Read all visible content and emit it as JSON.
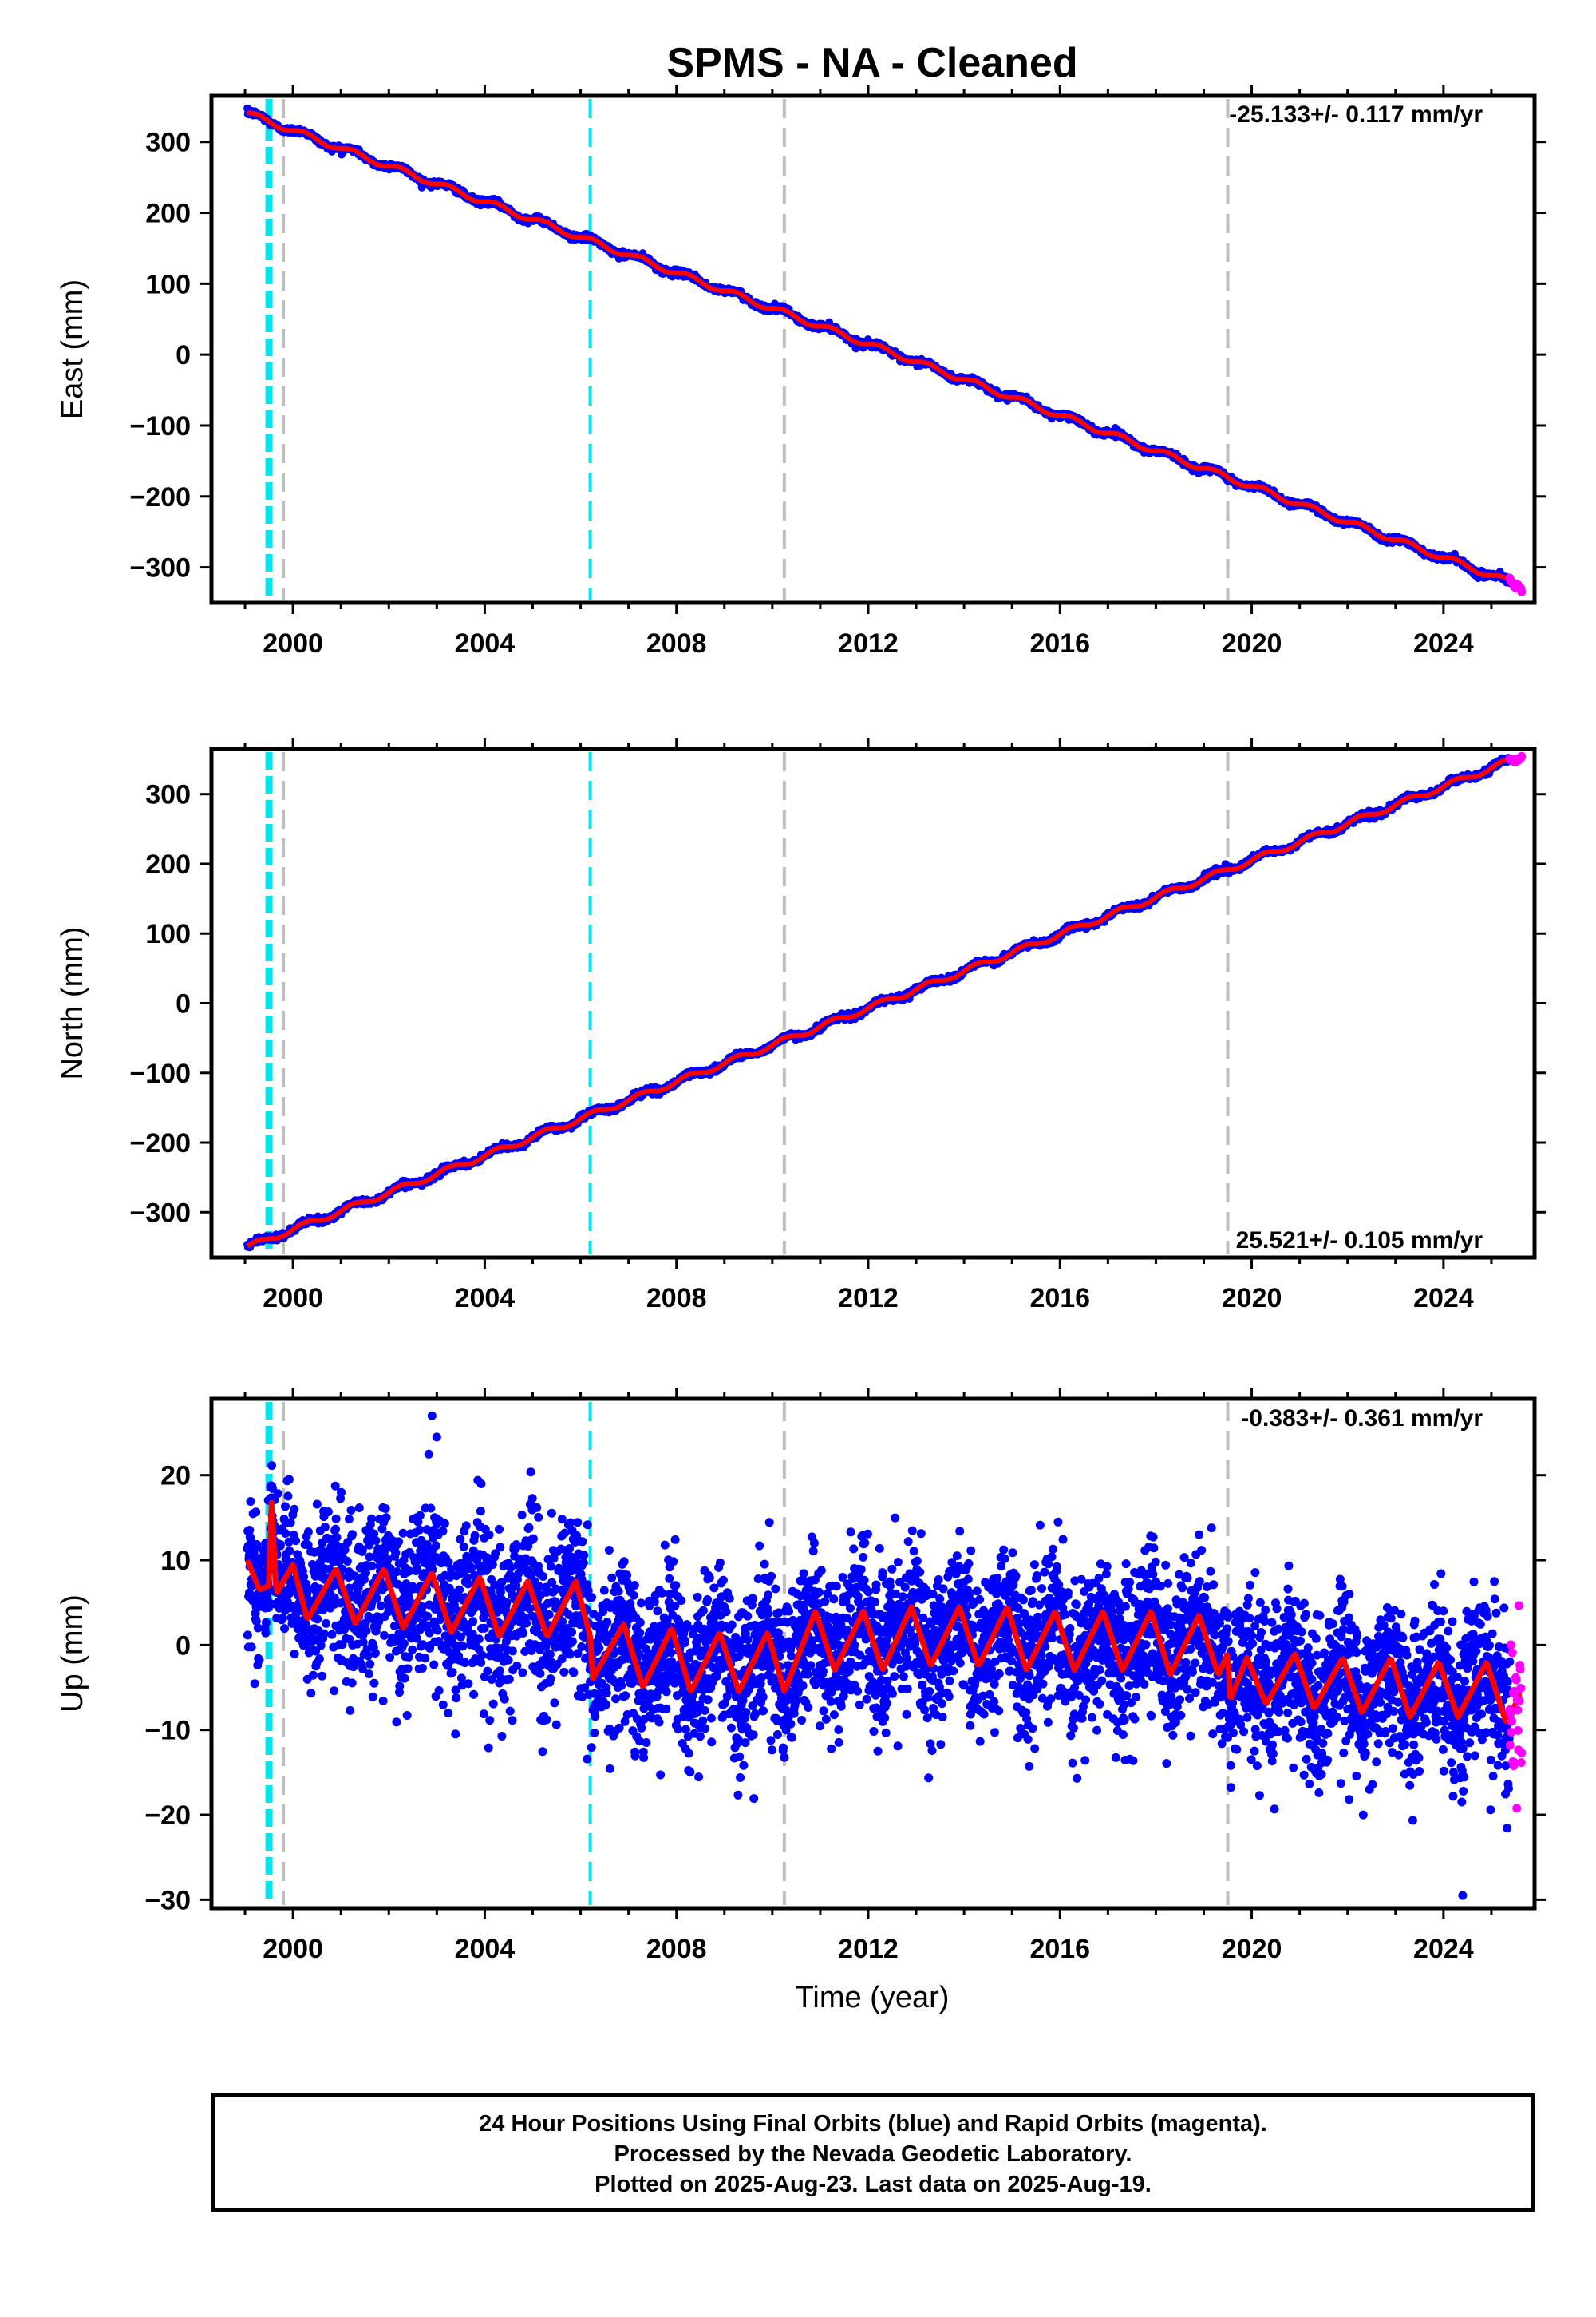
{
  "title": "SPMS  - NA - Cleaned",
  "xlabel": "Time (year)",
  "footer": {
    "line1": "24 Hour Positions Using Final Orbits (blue) and Rapid Orbits (magenta).",
    "line2": "Processed by the Nevada Geodetic Laboratory.",
    "line3": "Plotted on 2025-Aug-23. Last data on 2025-Aug-19."
  },
  "colors": {
    "final_orbits": "#0000ff",
    "rapid_orbits": "#ff00ff",
    "model_fit": "#ff0000",
    "cyan_event": "#00e5ee",
    "gray_event": "#bebebe"
  },
  "chart_data": [
    {
      "type": "scatter",
      "ylabel": "East (mm)",
      "rate_label": "-25.133+/- 0.117 mm/yr",
      "xlim": [
        1998.3,
        2025.9
      ],
      "ylim": [
        -350,
        365
      ],
      "x_ticks": [
        2000,
        2004,
        2008,
        2012,
        2016,
        2020,
        2024
      ],
      "y_ticks": [
        300,
        200,
        100,
        0,
        -100,
        -200,
        -300
      ],
      "y_tick_labels": [
        "300",
        "200",
        "100",
        "0",
        "−100",
        "−200",
        "−300"
      ],
      "start": [
        1999.05,
        340
      ],
      "end": [
        2025.55,
        -325
      ],
      "seasonal_amp": 4,
      "series": [
        {
          "role": "final",
          "x_range": [
            1999.05,
            2025.38
          ]
        },
        {
          "role": "rapid",
          "x_range": [
            2025.38,
            2025.63
          ]
        }
      ],
      "grid": false
    },
    {
      "type": "scatter",
      "ylabel": "North (mm)",
      "rate_label": "25.521+/- 0.105 mm/yr",
      "xlim": [
        1998.3,
        2025.9
      ],
      "ylim": [
        -365,
        365
      ],
      "x_ticks": [
        2000,
        2004,
        2008,
        2012,
        2016,
        2020,
        2024
      ],
      "y_ticks": [
        300,
        200,
        100,
        0,
        -100,
        -200,
        -300
      ],
      "y_tick_labels": [
        "300",
        "200",
        "100",
        "0",
        "−100",
        "−200",
        "−300"
      ],
      "start": [
        1999.05,
        -350
      ],
      "end": [
        2025.55,
        352
      ],
      "seasonal_amp": 4,
      "series": [
        {
          "role": "final",
          "x_range": [
            1999.05,
            2025.38
          ]
        },
        {
          "role": "rapid",
          "x_range": [
            2025.38,
            2025.63
          ]
        }
      ],
      "grid": false
    },
    {
      "type": "scatter",
      "ylabel": "Up (mm)",
      "rate_label": "-0.383+/- 0.361 mm/yr",
      "xlim": [
        1998.3,
        2025.9
      ],
      "ylim": [
        -31,
        29
      ],
      "x_ticks": [
        2000,
        2004,
        2008,
        2012,
        2016,
        2020,
        2024
      ],
      "y_ticks": [
        20,
        10,
        0,
        -10,
        -20,
        -30
      ],
      "y_tick_labels": [
        "20",
        "10",
        "0",
        "−10",
        "−20",
        "−30"
      ],
      "model_fit_knots": [
        [
          1999.05,
          10
        ],
        [
          1999.3,
          6.5
        ],
        [
          1999.5,
          7
        ],
        [
          1999.55,
          17
        ],
        [
          1999.65,
          6
        ],
        [
          2000.0,
          9.5
        ],
        [
          2000.3,
          3
        ],
        [
          2000.9,
          9
        ],
        [
          2001.3,
          2.5
        ],
        [
          2001.9,
          9
        ],
        [
          2002.3,
          2
        ],
        [
          2002.9,
          8.5
        ],
        [
          2003.3,
          1.5
        ],
        [
          2003.9,
          8
        ],
        [
          2004.3,
          1
        ],
        [
          2004.9,
          7.5
        ],
        [
          2005.3,
          1
        ],
        [
          2005.9,
          7.5
        ],
        [
          2006.2,
          1
        ],
        [
          2006.25,
          -4
        ],
        [
          2006.9,
          2.5
        ],
        [
          2007.3,
          -5
        ],
        [
          2007.9,
          2
        ],
        [
          2008.3,
          -5.5
        ],
        [
          2008.9,
          1.5
        ],
        [
          2009.3,
          -5.5
        ],
        [
          2009.9,
          1.5
        ],
        [
          2010.25,
          -5.5
        ],
        [
          2010.9,
          4
        ],
        [
          2011.3,
          -3
        ],
        [
          2011.9,
          4
        ],
        [
          2012.3,
          -3
        ],
        [
          2012.9,
          4.5
        ],
        [
          2013.3,
          -2.5
        ],
        [
          2013.9,
          4.5
        ],
        [
          2014.3,
          -2.5
        ],
        [
          2014.9,
          4.5
        ],
        [
          2015.3,
          -3
        ],
        [
          2015.9,
          4
        ],
        [
          2016.3,
          -3
        ],
        [
          2016.9,
          4
        ],
        [
          2017.3,
          -3
        ],
        [
          2017.9,
          4
        ],
        [
          2018.3,
          -3.5
        ],
        [
          2018.9,
          3.5
        ],
        [
          2019.3,
          -3.5
        ],
        [
          2019.5,
          -1
        ],
        [
          2019.55,
          -6.5
        ],
        [
          2019.9,
          -1.5
        ],
        [
          2020.3,
          -7
        ],
        [
          2020.9,
          -1
        ],
        [
          2021.3,
          -7.5
        ],
        [
          2021.9,
          -1.5
        ],
        [
          2022.3,
          -8
        ],
        [
          2022.9,
          -1.5
        ],
        [
          2023.3,
          -8.5
        ],
        [
          2023.9,
          -2
        ],
        [
          2024.3,
          -8.5
        ],
        [
          2024.9,
          -2
        ],
        [
          2025.3,
          -9
        ],
        [
          2025.6,
          -6
        ]
      ],
      "scatter_std": 4.5,
      "outliers": [
        [
          2024.4,
          -29.5
        ],
        [
          2002.9,
          27
        ],
        [
          2003.0,
          24.5
        ]
      ],
      "series": [
        {
          "role": "final",
          "x_range": [
            1999.05,
            2025.38
          ]
        },
        {
          "role": "rapid",
          "x_range": [
            2025.38,
            2025.63
          ]
        }
      ],
      "grid": false
    }
  ],
  "event_lines": [
    {
      "year": 1999.5,
      "color_key": "cyan_event",
      "style": "heavy-dashed"
    },
    {
      "year": 1999.8,
      "color_key": "gray_event",
      "style": "dashed"
    },
    {
      "year": 2006.2,
      "color_key": "cyan_event",
      "style": "dashed"
    },
    {
      "year": 2010.25,
      "color_key": "gray_event",
      "style": "dashed"
    },
    {
      "year": 2019.5,
      "color_key": "gray_event",
      "style": "dashed"
    }
  ]
}
